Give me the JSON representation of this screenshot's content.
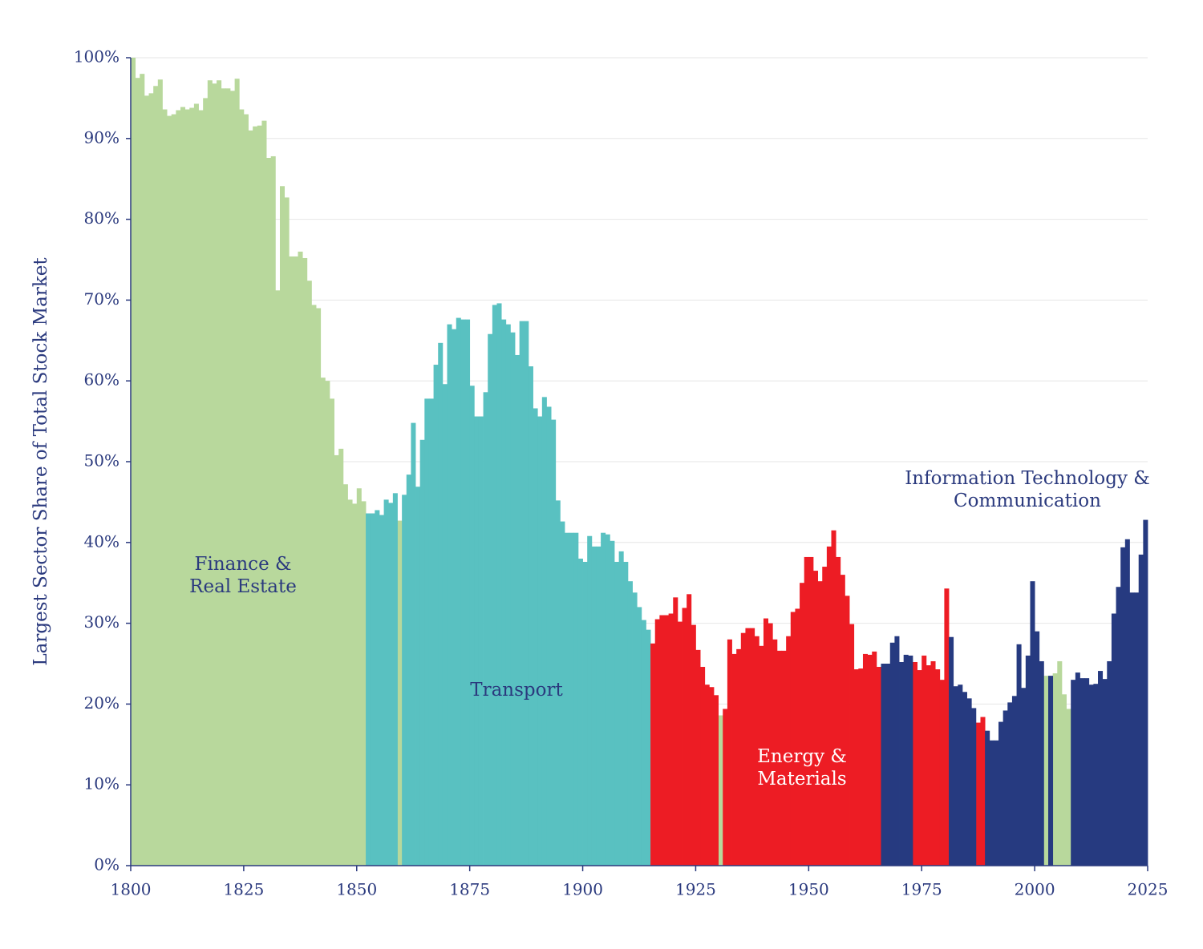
{
  "chart_data": {
    "type": "bar",
    "y_label": "Largest Sector Share of Total Stock Market",
    "xlim": [
      1800,
      2025
    ],
    "ylim": [
      0,
      100
    ],
    "xticks": [
      1800,
      1825,
      1850,
      1875,
      1900,
      1925,
      1950,
      1975,
      2000,
      2025
    ],
    "yticks": [
      {
        "value": 0,
        "label": "0%"
      },
      {
        "value": 10,
        "label": "10%"
      },
      {
        "value": 20,
        "label": "20%"
      },
      {
        "value": 30,
        "label": "30%"
      },
      {
        "value": 40,
        "label": "40%"
      },
      {
        "value": 50,
        "label": "50%"
      },
      {
        "value": 60,
        "label": "60%"
      },
      {
        "value": 70,
        "label": "70%"
      },
      {
        "value": 80,
        "label": "80%"
      },
      {
        "value": 90,
        "label": "90%"
      },
      {
        "value": 100,
        "label": "100%"
      }
    ],
    "grid": true,
    "series": [
      {
        "label": [
          "Finance &",
          "Real Estate"
        ],
        "color": "#b8d89c",
        "label_color": "#2b3a7e",
        "x": [
          1800,
          1801,
          1802,
          1803,
          1804,
          1805,
          1806,
          1807,
          1808,
          1809,
          1810,
          1811,
          1812,
          1813,
          1814,
          1815,
          1816,
          1817,
          1818,
          1819,
          1820,
          1821,
          1822,
          1823,
          1824,
          1825,
          1826,
          1827,
          1828,
          1829,
          1830,
          1831,
          1832,
          1833,
          1834,
          1835,
          1836,
          1837,
          1838,
          1839,
          1840,
          1841,
          1842,
          1843,
          1844,
          1845,
          1846,
          1847,
          1848,
          1849,
          1850,
          1851,
          1859,
          1930,
          2002,
          2004,
          2005,
          2006,
          2007
        ],
        "values": [
          100,
          97.5,
          98,
          95.3,
          95.6,
          96.5,
          97.3,
          93.6,
          92.8,
          93,
          93.5,
          93.9,
          93.6,
          93.8,
          94.3,
          93.5,
          95,
          97.2,
          96.8,
          97.2,
          96.2,
          96.2,
          95.9,
          97.4,
          93.6,
          93,
          91,
          91.5,
          91.6,
          92.2,
          87.6,
          87.8,
          71.2,
          84.1,
          82.7,
          75.4,
          75.4,
          76,
          75.2,
          72.4,
          69.4,
          69,
          60.4,
          60,
          57.8,
          50.8,
          51.6,
          47.2,
          45.3,
          44.8,
          46.7,
          45.1,
          42.7,
          18.6,
          23.5,
          23.8,
          25.3,
          21.2,
          19.4
        ]
      },
      {
        "label": [
          "Transport"
        ],
        "color": "#59c1c1",
        "label_color": "#2b3a7e",
        "x": [
          1852,
          1853,
          1854,
          1855,
          1856,
          1857,
          1858,
          1860,
          1861,
          1862,
          1863,
          1864,
          1865,
          1866,
          1867,
          1868,
          1869,
          1870,
          1871,
          1872,
          1873,
          1874,
          1875,
          1876,
          1877,
          1878,
          1879,
          1880,
          1881,
          1882,
          1883,
          1884,
          1885,
          1886,
          1887,
          1888,
          1889,
          1890,
          1891,
          1892,
          1893,
          1894,
          1895,
          1896,
          1897,
          1898,
          1899,
          1900,
          1901,
          1902,
          1903,
          1904,
          1905,
          1906,
          1907,
          1908,
          1909,
          1910,
          1911,
          1912,
          1913,
          1914
        ],
        "values": [
          43.6,
          43.6,
          44,
          43.4,
          45.3,
          44.9,
          46.1,
          45.9,
          48.4,
          54.8,
          46.9,
          52.7,
          57.8,
          57.8,
          62,
          64.7,
          59.6,
          67,
          66.4,
          67.8,
          67.6,
          67.6,
          59.4,
          55.6,
          55.6,
          58.6,
          65.8,
          69.4,
          69.6,
          67.6,
          67,
          66,
          63.2,
          67.4,
          67.4,
          61.8,
          56.6,
          55.6,
          58,
          56.8,
          55.2,
          45.2,
          42.6,
          41.2,
          41.2,
          41.2,
          38,
          37.6,
          40.8,
          39.5,
          39.5,
          41.2,
          41,
          40.2,
          37.6,
          38.9,
          37.6,
          35.2,
          33.8,
          32,
          30.4,
          29.2
        ]
      },
      {
        "label": [
          "Energy &",
          "Materials"
        ],
        "color": "#ed1c24",
        "label_color": "#ffffff",
        "x": [
          1915,
          1916,
          1917,
          1918,
          1919,
          1920,
          1921,
          1922,
          1923,
          1924,
          1925,
          1926,
          1927,
          1928,
          1929,
          1931,
          1932,
          1933,
          1934,
          1935,
          1936,
          1937,
          1938,
          1939,
          1940,
          1941,
          1942,
          1943,
          1944,
          1945,
          1946,
          1947,
          1948,
          1949,
          1950,
          1951,
          1952,
          1953,
          1954,
          1955,
          1956,
          1957,
          1958,
          1959,
          1960,
          1961,
          1962,
          1963,
          1964,
          1965,
          1973,
          1974,
          1975,
          1976,
          1977,
          1978,
          1979,
          1980,
          1987,
          1988
        ],
        "values": [
          27.5,
          30.5,
          31,
          31,
          31.2,
          33.2,
          30.2,
          31.9,
          33.6,
          29.8,
          26.7,
          24.6,
          22.4,
          22.1,
          21.1,
          19.4,
          28,
          26.2,
          26.8,
          28.8,
          29.4,
          29.4,
          28.4,
          27.2,
          30.6,
          30,
          28,
          26.6,
          26.6,
          28.4,
          31.4,
          31.8,
          35,
          38.2,
          38.2,
          36.5,
          35.2,
          37,
          39.5,
          41.5,
          38.2,
          36,
          33.4,
          29.9,
          24.3,
          24.4,
          26.2,
          26.1,
          26.5,
          24.6,
          25.2,
          24.2,
          26,
          24.8,
          25.3,
          24.3,
          23,
          34.3,
          17.7,
          18.4
        ]
      },
      {
        "label": [
          "Information Technology &",
          "Communication"
        ],
        "color": "#263a80",
        "label_color": "#2b3a7e",
        "x": [
          1966,
          1967,
          1968,
          1969,
          1970,
          1971,
          1972,
          1981,
          1982,
          1983,
          1984,
          1985,
          1986,
          1989,
          1990,
          1991,
          1992,
          1993,
          1994,
          1995,
          1996,
          1997,
          1998,
          1999,
          2000,
          2001,
          2003,
          2008,
          2009,
          2010,
          2011,
          2012,
          2013,
          2014,
          2015,
          2016,
          2017,
          2018,
          2019,
          2020,
          2021,
          2022,
          2023,
          2024
        ],
        "values": [
          25,
          25,
          27.6,
          28.4,
          25.2,
          26.1,
          26,
          28.3,
          22.2,
          22.4,
          21.5,
          20.7,
          19.5,
          16.7,
          15.5,
          15.5,
          17.8,
          19.2,
          20.2,
          21,
          27.4,
          22,
          26,
          35.2,
          29,
          25.3,
          23.5,
          23,
          23.9,
          23.2,
          23.2,
          22.4,
          22.5,
          24.1,
          23.1,
          25.3,
          31.2,
          34.5,
          39.4,
          40.4,
          33.8,
          33.8,
          38.5,
          42.8
        ]
      }
    ]
  }
}
